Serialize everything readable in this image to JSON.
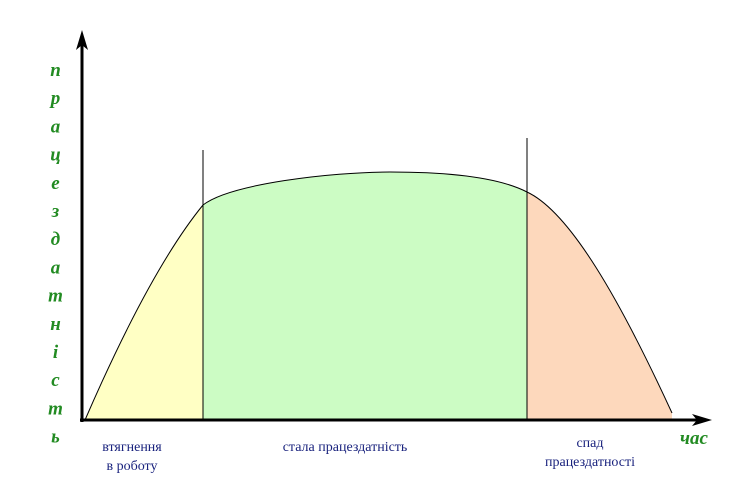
{
  "axes": {
    "y_label": "працездатність",
    "x_label": "час"
  },
  "phases": [
    {
      "lines": [
        "втягнення",
        "в роботу"
      ]
    },
    {
      "lines": [
        "стала працездатність"
      ]
    },
    {
      "lines": [
        "спад",
        "працездатності"
      ]
    }
  ]
}
